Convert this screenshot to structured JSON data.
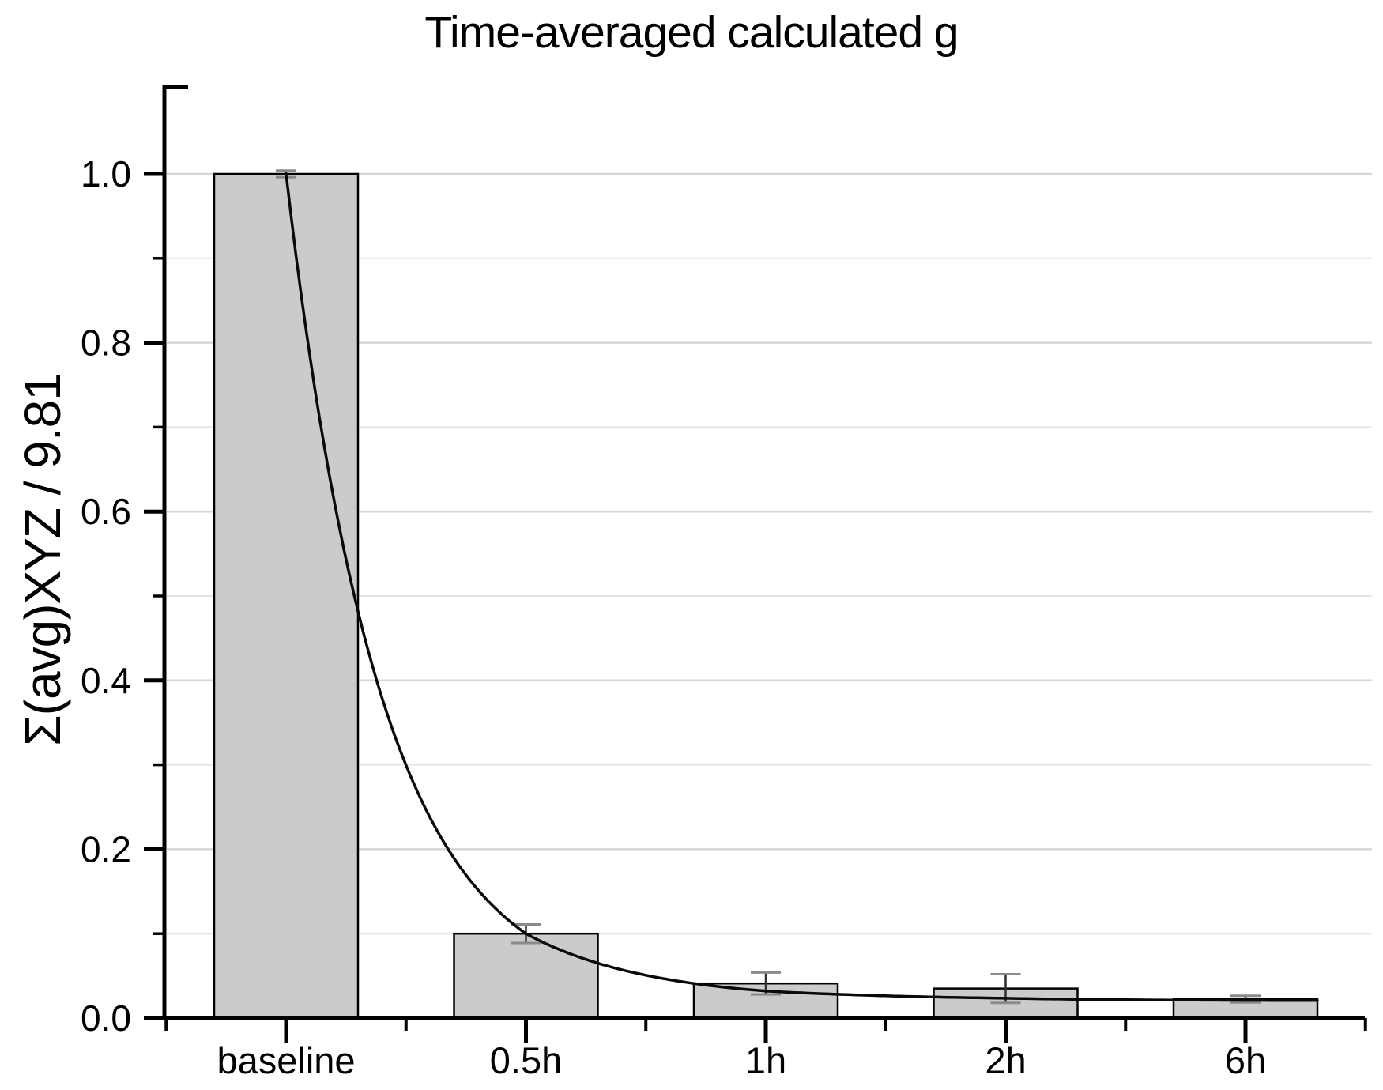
{
  "page": {
    "background": "#ffffff"
  },
  "chart_data": {
    "type": "bar",
    "title": "Time-averaged calculated g",
    "ylabel": "Σ(avg)XYZ / 9.81",
    "xlabel": "",
    "categories": [
      "baseline",
      "0.5h",
      "1h",
      "2h",
      "6h"
    ],
    "values": [
      1.0,
      0.1,
      0.041,
      0.035,
      0.0225
    ],
    "errors": [
      0.004,
      0.011,
      0.013,
      0.017,
      0.004
    ],
    "y_major_ticks": [
      0,
      0.2,
      0.4,
      0.6,
      0.8,
      1.0
    ],
    "y_tick_labels": [
      "0.0",
      "0.2",
      "0.4",
      "0.6",
      "0.8",
      "1.0"
    ],
    "y_minor_ticks": [
      0.1,
      0.3,
      0.5,
      0.7,
      0.9
    ],
    "ylim": [
      0,
      1.105
    ],
    "grid": {
      "horizontal": true,
      "vertical": false,
      "minor_gridlines": true
    },
    "legend": null,
    "bar_style": "outlined gray bars with error bars",
    "colors": {
      "bar_fill": "#cbcbcb",
      "bar_stroke": "#000000",
      "curve": "#0a0a0a",
      "grid_major": "#d6d6d6",
      "grid_minor": "#e5e5e5",
      "error_line": "#2e2e2e",
      "error_cap": "#8a8a8a",
      "axis": "#000000"
    },
    "fit_curve": {
      "type": "exponential_decay",
      "values_at_categories": [
        1.0,
        0.1,
        0.032,
        0.0235,
        0.021
      ],
      "asymptote": 0.0205
    }
  }
}
